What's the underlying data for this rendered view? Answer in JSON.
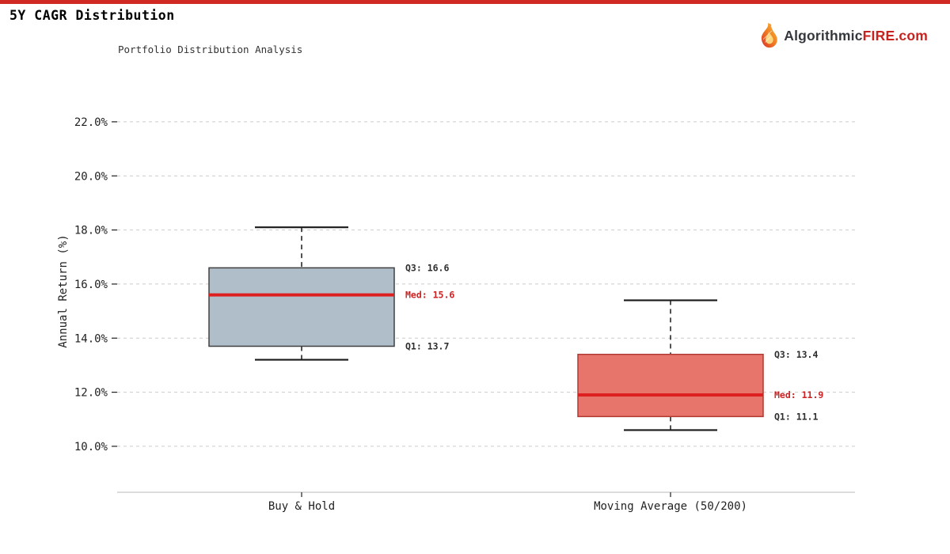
{
  "page": {
    "title": "5Y CAGR Distribution"
  },
  "accent": {
    "top_bar_color": "#d02923"
  },
  "logo": {
    "name_part": "Algorithmic",
    "brand_part": "FIRE",
    "tld_part": ".com",
    "colors": {
      "dark": "#34383d",
      "red": "#c5231f"
    },
    "icon": "flame-icon"
  },
  "chart_data": {
    "type": "boxplot",
    "title": "Portfolio Distribution Analysis",
    "xlabel": "",
    "ylabel": "Annual Return (%)",
    "ylim": [
      8.3,
      22.7
    ],
    "grid": true,
    "legend_position": "none",
    "yticks": [
      {
        "value": 10,
        "label": "10.0%"
      },
      {
        "value": 12,
        "label": "12.0%"
      },
      {
        "value": 14,
        "label": "14.0%"
      },
      {
        "value": 16,
        "label": "16.0%"
      },
      {
        "value": 18,
        "label": "18.0%"
      },
      {
        "value": 20,
        "label": "20.0%"
      },
      {
        "value": 22,
        "label": "22.0%"
      }
    ],
    "categories": [
      "Buy & Hold",
      "Moving Average (50/200)"
    ],
    "series": [
      {
        "name": "Buy & Hold",
        "whisker_low": 13.2,
        "q1": 13.7,
        "median": 15.6,
        "q3": 16.6,
        "whisker_high": 18.1,
        "box_color": "#b0bec9",
        "edge_color": "#404040",
        "labels": {
          "q3": "Q3: 16.6",
          "median": "Med: 15.6",
          "q1": "Q1: 13.7"
        }
      },
      {
        "name": "Moving Average (50/200)",
        "whisker_low": 10.6,
        "q1": 11.1,
        "median": 11.9,
        "q3": 13.4,
        "whisker_high": 15.4,
        "box_color": "#e8756b",
        "edge_color": "#b03a31",
        "labels": {
          "q3": "Q3: 13.4",
          "median": "Med: 11.9",
          "q1": "Q1: 11.1"
        }
      }
    ],
    "colors": {
      "median_line": "#dd1f1f",
      "annotation_text": "#2d2d2d",
      "annotation_median_text": "#cc2222",
      "gridline": "#cccccc",
      "axis_line": "#c8c8c8",
      "tick_text": "#1f1f1f",
      "whisker": "#1a1a1a"
    }
  }
}
